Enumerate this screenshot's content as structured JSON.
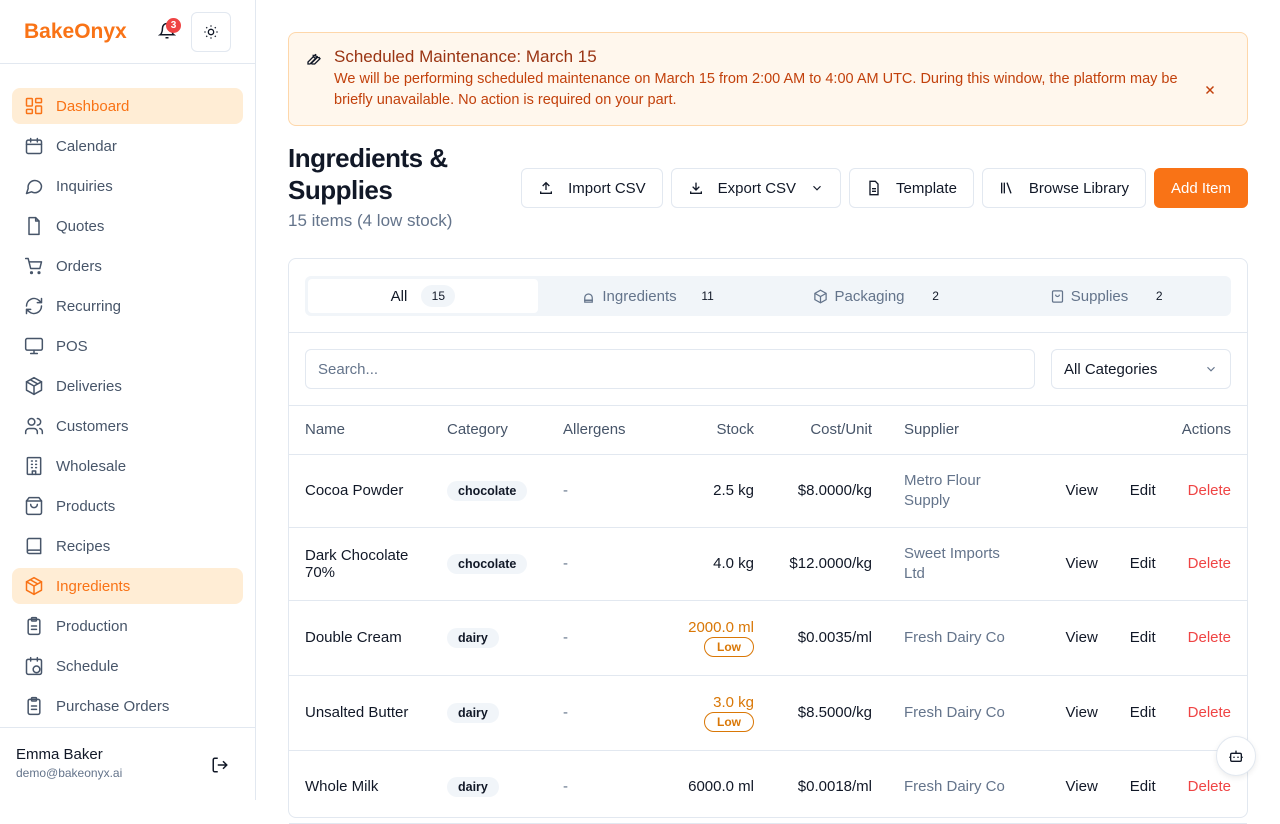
{
  "app": {
    "name": "BakeOnyx",
    "notification_count": "3",
    "accent": "#f97316"
  },
  "sidebar": {
    "items": [
      {
        "label": "Dashboard",
        "icon": "layout-grid-icon",
        "active": true
      },
      {
        "label": "Calendar",
        "icon": "calendar-icon"
      },
      {
        "label": "Inquiries",
        "icon": "message-icon"
      },
      {
        "label": "Quotes",
        "icon": "file-icon"
      },
      {
        "label": "Orders",
        "icon": "cart-icon"
      },
      {
        "label": "Recurring",
        "icon": "refresh-icon"
      },
      {
        "label": "POS",
        "icon": "monitor-icon"
      },
      {
        "label": "Deliveries",
        "icon": "package-icon"
      },
      {
        "label": "Customers",
        "icon": "users-icon"
      },
      {
        "label": "Wholesale",
        "icon": "building-icon"
      },
      {
        "label": "Products",
        "icon": "bag-icon"
      },
      {
        "label": "Recipes",
        "icon": "book-icon"
      },
      {
        "label": "Ingredients",
        "icon": "package-icon",
        "active": true
      },
      {
        "label": "Production",
        "icon": "clipboard-icon"
      },
      {
        "label": "Schedule",
        "icon": "clock-icon"
      },
      {
        "label": "Purchase Orders",
        "icon": "clipboard-icon"
      }
    ],
    "user": {
      "name": "Emma Baker",
      "email": "demo@bakeonyx.ai"
    }
  },
  "banner": {
    "title": "Scheduled Maintenance: March 15",
    "text": "We will be performing scheduled maintenance on March 15 from 2:00 AM to 4:00 AM UTC. During this window, the platform may be briefly unavailable. No action is required on your part."
  },
  "page": {
    "title": "Ingredients & Supplies",
    "subtitle": "15 items (4 low stock)"
  },
  "toolbar": {
    "import": "Import CSV",
    "export": "Export CSV",
    "template": "Template",
    "browse": "Browse Library",
    "add": "Add Item"
  },
  "tabs": [
    {
      "label": "All",
      "count": "15",
      "active": true
    },
    {
      "label": "Ingredients",
      "count": "11"
    },
    {
      "label": "Packaging",
      "count": "2"
    },
    {
      "label": "Supplies",
      "count": "2"
    }
  ],
  "filters": {
    "search_placeholder": "Search...",
    "category": "All Categories"
  },
  "table": {
    "columns": [
      "Name",
      "Category",
      "Allergens",
      "Stock",
      "Cost/Unit",
      "Supplier",
      "Actions"
    ],
    "actions": {
      "view": "View",
      "edit": "Edit",
      "delete": "Delete"
    },
    "rows": [
      {
        "name": "Cocoa Powder",
        "category": "chocolate",
        "allergens": "-",
        "stock": "2.5 kg",
        "low": false,
        "cost": "$8.0000/kg",
        "supplier": "Metro Flour Supply"
      },
      {
        "name": "Dark Chocolate 70%",
        "category": "chocolate",
        "allergens": "-",
        "stock": "4.0 kg",
        "low": false,
        "cost": "$12.0000/kg",
        "supplier": "Sweet Imports Ltd"
      },
      {
        "name": "Double Cream",
        "category": "dairy",
        "allergens": "-",
        "stock": "2000.0 ml",
        "low": true,
        "low_label": "Low",
        "cost": "$0.0035/ml",
        "supplier": "Fresh Dairy Co"
      },
      {
        "name": "Unsalted Butter",
        "category": "dairy",
        "allergens": "-",
        "stock": "3.0 kg",
        "low": true,
        "low_label": "Low",
        "cost": "$8.5000/kg",
        "supplier": "Fresh Dairy Co"
      },
      {
        "name": "Whole Milk",
        "category": "dairy",
        "allergens": "-",
        "stock": "6000.0 ml",
        "low": false,
        "cost": "$0.0018/ml",
        "supplier": "Fresh Dairy Co"
      }
    ]
  }
}
